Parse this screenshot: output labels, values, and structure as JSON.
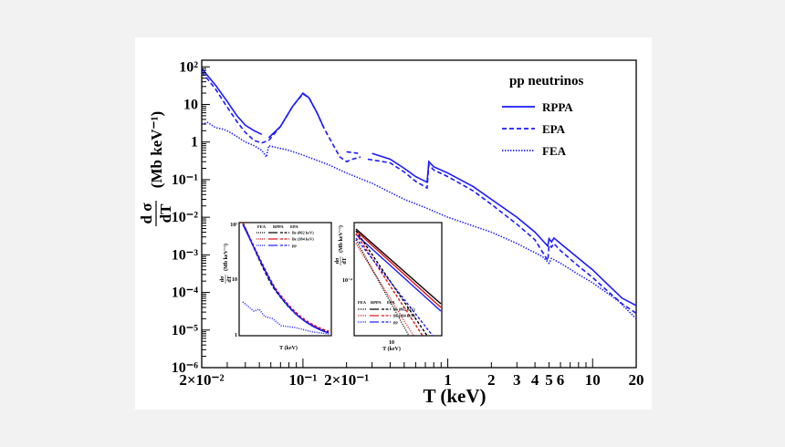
{
  "chart_data": {
    "type": "line",
    "xscale": "log",
    "yscale": "log",
    "xlim": [
      0.02,
      20
    ],
    "ylim": [
      1e-06,
      150
    ],
    "xlabel": "T (keV)",
    "ylabel": "(Mb keV⁻¹)",
    "ylabel_num": "d σ",
    "ylabel_den": "dT",
    "xticks": [
      {
        "v": 0.02,
        "label": "2×10⁻²"
      },
      {
        "v": 0.1,
        "label": "10⁻¹"
      },
      {
        "v": 0.2,
        "label": "2×10⁻¹"
      },
      {
        "v": 1,
        "label": "1"
      },
      {
        "v": 2,
        "label": "2"
      },
      {
        "v": 3,
        "label": "3"
      },
      {
        "v": 4,
        "label": "4"
      },
      {
        "v": 5,
        "label": "5"
      },
      {
        "v": 6,
        "label": "6"
      },
      {
        "v": 10,
        "label": "10"
      },
      {
        "v": 20,
        "label": "20"
      }
    ],
    "yticks": [
      {
        "v": 1e-06,
        "label": "10⁻⁶"
      },
      {
        "v": 1e-05,
        "label": "10⁻⁵"
      },
      {
        "v": 0.0001,
        "label": "10⁻⁴"
      },
      {
        "v": 0.001,
        "label": "10⁻³"
      },
      {
        "v": 0.01,
        "label": "10⁻²"
      },
      {
        "v": 0.1,
        "label": "10⁻¹"
      },
      {
        "v": 1,
        "label": "1"
      },
      {
        "v": 10,
        "label": "10"
      },
      {
        "v": 100,
        "label": "10²"
      }
    ],
    "legend": {
      "title": "pp neutrinos",
      "position": "top-right"
    },
    "series": [
      {
        "name": "RPPA",
        "style": "solid",
        "color": "#1a1aff",
        "segments": [
          [
            [
              0.02,
              90
            ],
            [
              0.025,
              32
            ],
            [
              0.03,
              12
            ],
            [
              0.035,
              5
            ],
            [
              0.04,
              2.8
            ],
            [
              0.046,
              2.0
            ],
            [
              0.052,
              1.6
            ]
          ],
          [
            [
              0.058,
              1.3
            ],
            [
              0.07,
              2.6
            ],
            [
              0.085,
              9
            ],
            [
              0.1,
              20
            ],
            [
              0.11,
              15
            ],
            [
              0.125,
              6
            ],
            [
              0.14,
              2.3
            ]
          ],
          [
            [
              0.3,
              0.5
            ],
            [
              0.4,
              0.35
            ],
            [
              0.5,
              0.2
            ],
            [
              0.6,
              0.12
            ],
            [
              0.72,
              0.085
            ],
            [
              0.74,
              0.3
            ],
            [
              0.8,
              0.22
            ],
            [
              1,
              0.15
            ],
            [
              1.5,
              0.065
            ],
            [
              2,
              0.03
            ],
            [
              3,
              0.01
            ],
            [
              4,
              0.004
            ],
            [
              4.9,
              0.0017
            ],
            [
              5,
              0.0027
            ],
            [
              5.2,
              0.0022
            ],
            [
              5.4,
              0.0028
            ],
            [
              6,
              0.002
            ],
            [
              8,
              0.0008
            ],
            [
              10,
              0.0004
            ],
            [
              13,
              0.00015
            ],
            [
              16,
              7e-05
            ],
            [
              20,
              4.5e-05
            ]
          ]
        ]
      },
      {
        "name": "EPA",
        "style": "dashed",
        "color": "#1a1aff",
        "segments": [
          [
            [
              0.02,
              75
            ],
            [
              0.025,
              25
            ],
            [
              0.03,
              8.5
            ],
            [
              0.035,
              3.5
            ],
            [
              0.04,
              1.8
            ],
            [
              0.046,
              1.1
            ],
            [
              0.052,
              0.95
            ],
            [
              0.058,
              1.1
            ],
            [
              0.07,
              2.6
            ],
            [
              0.085,
              9
            ],
            [
              0.1,
              19
            ],
            [
              0.11,
              15
            ],
            [
              0.125,
              6
            ],
            [
              0.14,
              2.3
            ],
            [
              0.16,
              0.9
            ],
            [
              0.18,
              0.4
            ],
            [
              0.2,
              0.3
            ],
            [
              0.22,
              0.35
            ],
            [
              0.25,
              0.4
            ]
          ],
          [
            [
              0.2,
              0.55
            ],
            [
              0.24,
              0.5
            ]
          ],
          [
            [
              0.28,
              0.35
            ],
            [
              0.4,
              0.28
            ],
            [
              0.5,
              0.16
            ],
            [
              0.6,
              0.09
            ],
            [
              0.72,
              0.06
            ],
            [
              0.74,
              0.25
            ],
            [
              0.8,
              0.18
            ],
            [
              1,
              0.12
            ],
            [
              1.5,
              0.05
            ],
            [
              2,
              0.022
            ],
            [
              3,
              0.0065
            ],
            [
              4,
              0.0025
            ],
            [
              4.9,
              0.0007
            ],
            [
              5,
              0.0018
            ],
            [
              5.2,
              0.0016
            ],
            [
              5.4,
              0.002
            ],
            [
              6,
              0.0013
            ],
            [
              8,
              0.0005
            ],
            [
              10,
              0.00025
            ],
            [
              13,
              0.0001
            ],
            [
              16,
              5e-05
            ],
            [
              20,
              2.8e-05
            ]
          ]
        ]
      },
      {
        "name": "FEA",
        "style": "dotted",
        "color": "#1a1aff",
        "segments": [
          [
            [
              0.02,
              3
            ],
            [
              0.022,
              3.3
            ],
            [
              0.025,
              2.4
            ],
            [
              0.028,
              2.2
            ],
            [
              0.03,
              2.0
            ],
            [
              0.035,
              1.4
            ],
            [
              0.04,
              1.0
            ],
            [
              0.046,
              0.8
            ],
            [
              0.052,
              0.6
            ],
            [
              0.056,
              0.4
            ],
            [
              0.058,
              0.8
            ],
            [
              0.08,
              0.6
            ],
            [
              0.1,
              0.45
            ],
            [
              0.15,
              0.25
            ],
            [
              0.2,
              0.15
            ],
            [
              0.3,
              0.08
            ],
            [
              0.5,
              0.03
            ],
            [
              0.7,
              0.018
            ],
            [
              1,
              0.01
            ],
            [
              2,
              0.004
            ],
            [
              3,
              0.002
            ],
            [
              4.5,
              0.0009
            ],
            [
              5,
              0.0006
            ],
            [
              5.2,
              0.0008
            ],
            [
              6,
              0.0006
            ],
            [
              8,
              0.0003
            ],
            [
              10,
              0.00018
            ],
            [
              15,
              6e-05
            ],
            [
              20,
              2e-05
            ]
          ]
        ]
      }
    ],
    "insets": [
      {
        "xscale": "log",
        "yscale": "log",
        "xlabel": "T (keV)",
        "yticks": [
          {
            "v": 1,
            "label": "1"
          },
          {
            "v": 10,
            "label": "10"
          },
          {
            "v": 1000,
            "label": "10³"
          }
        ],
        "legend_header": [
          "FEA",
          "RPPA",
          "EPA"
        ],
        "legend_rows": [
          "Be (862 keV)",
          "Be (384 keV)",
          "pp"
        ]
      },
      {
        "xscale": "log",
        "yscale": "log",
        "xlabel": "T (keV)",
        "xticks": [
          {
            "label": "10"
          }
        ],
        "yticks": [
          {
            "label": "10⁻⁴"
          }
        ],
        "legend_header": [
          "FEA",
          "RPPA",
          "EPA"
        ],
        "legend_rows": [
          "Be (862 keV)",
          "Be (384 keV)",
          "pp"
        ]
      }
    ]
  },
  "colors": {
    "main": "#1a1aff",
    "be862": "#000000",
    "be384": "#e01010",
    "pp": "#1a1aff"
  }
}
